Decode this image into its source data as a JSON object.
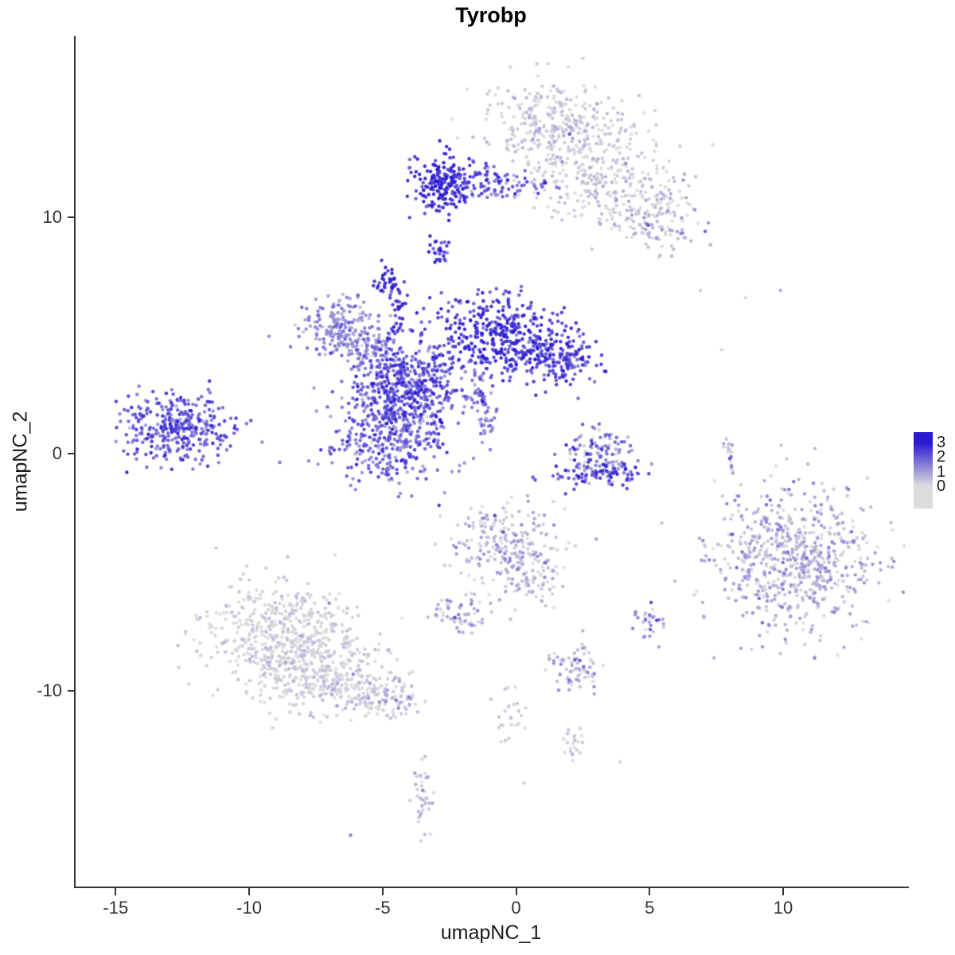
{
  "chart_data": {
    "type": "scatter",
    "title": "Tyrobp",
    "xlabel": "umapNC_1",
    "ylabel": "umapNC_2",
    "xlim": [
      -16.5,
      14.65
    ],
    "ylim": [
      -18.3,
      17.65
    ],
    "x_ticks": [
      -15,
      -10,
      -5,
      0,
      5,
      10
    ],
    "y_ticks": [
      10,
      0,
      -10
    ],
    "grid": false,
    "legend_position": "right",
    "legend": {
      "ticks": [
        3,
        2,
        1,
        0
      ],
      "high_color": "#2A1AD2",
      "low_color": "#DCDCDC"
    },
    "point_radius": 2.2,
    "clusters": [
      {
        "name": "top-grey-a",
        "cx": 1.2,
        "cy": 13.9,
        "sx": 1.15,
        "sy": 0.95,
        "n": 270,
        "expr": 0.18,
        "expr_sd": 0.3
      },
      {
        "name": "top-grey-b",
        "cx": 2.8,
        "cy": 12.2,
        "sx": 1.35,
        "sy": 1.15,
        "n": 260,
        "expr": 0.18,
        "expr_sd": 0.32
      },
      {
        "name": "top-grey-c",
        "cx": 4.7,
        "cy": 10.6,
        "sx": 1.0,
        "sy": 0.8,
        "n": 150,
        "expr": 0.25,
        "expr_sd": 0.4
      },
      {
        "name": "top-grey-tail",
        "cx": 5.7,
        "cy": 9.4,
        "sx": 0.7,
        "sy": 0.5,
        "n": 60,
        "expr": 0.5,
        "expr_sd": 0.6
      },
      {
        "name": "top-blue-core",
        "cx": -2.9,
        "cy": 11.4,
        "sx": 0.5,
        "sy": 0.6,
        "n": 160,
        "expr": 2.7,
        "expr_sd": 0.4
      },
      {
        "name": "top-blue-east",
        "cx": -1.7,
        "cy": 11.6,
        "sx": 0.8,
        "sy": 0.38,
        "n": 90,
        "expr": 2.3,
        "expr_sd": 0.5
      },
      {
        "name": "top-blue-bridge",
        "cx": -0.2,
        "cy": 11.3,
        "sx": 0.85,
        "sy": 0.3,
        "n": 45,
        "expr": 1.5,
        "expr_sd": 0.8
      },
      {
        "name": "blue-dot-mid",
        "cx": -2.9,
        "cy": 8.6,
        "sx": 0.2,
        "sy": 0.4,
        "n": 28,
        "expr": 2.4,
        "expr_sd": 0.4
      },
      {
        "name": "blue-blob-small",
        "cx": -4.8,
        "cy": 7.2,
        "sx": 0.28,
        "sy": 0.3,
        "n": 40,
        "expr": 2.8,
        "expr_sd": 0.3
      },
      {
        "name": "blue-streak",
        "cx": -4.4,
        "cy": 6.0,
        "sx": 0.16,
        "sy": 0.55,
        "n": 25,
        "expr": 2.5,
        "expr_sd": 0.4
      },
      {
        "name": "central-lavender-west",
        "cx": -6.6,
        "cy": 5.3,
        "sx": 0.75,
        "sy": 0.6,
        "n": 190,
        "expr": 1.25,
        "expr_sd": 0.45
      },
      {
        "name": "central-lavender-tail",
        "cx": -5.5,
        "cy": 4.4,
        "sx": 0.55,
        "sy": 0.4,
        "n": 90,
        "expr": 1.3,
        "expr_sd": 0.5
      },
      {
        "name": "central-core",
        "cx": -4.0,
        "cy": 3.0,
        "sx": 0.95,
        "sy": 0.95,
        "n": 480,
        "expr": 2.0,
        "expr_sd": 0.6
      },
      {
        "name": "central-east-wing",
        "cx": -0.7,
        "cy": 5.0,
        "sx": 1.15,
        "sy": 0.85,
        "n": 400,
        "expr": 2.5,
        "expr_sd": 0.45
      },
      {
        "name": "central-east-tip",
        "cx": 1.6,
        "cy": 4.1,
        "sx": 0.75,
        "sy": 0.55,
        "n": 160,
        "expr": 2.3,
        "expr_sd": 0.5
      },
      {
        "name": "central-south-lobe",
        "cx": -4.7,
        "cy": 0.7,
        "sx": 1.05,
        "sy": 1.05,
        "n": 380,
        "expr": 1.8,
        "expr_sd": 0.6
      },
      {
        "name": "central-streak-a",
        "cx": -1.6,
        "cy": 2.6,
        "sx": 0.25,
        "sy": 0.35,
        "n": 30,
        "expr": 1.4,
        "expr_sd": 0.4
      },
      {
        "name": "central-streak-b",
        "cx": -1.1,
        "cy": 1.5,
        "sx": 0.22,
        "sy": 0.55,
        "n": 35,
        "expr": 1.3,
        "expr_sd": 0.4
      },
      {
        "name": "west-cluster",
        "cx": -12.7,
        "cy": 1.1,
        "sx": 1.05,
        "sy": 0.75,
        "n": 340,
        "expr": 2.0,
        "expr_sd": 0.55
      },
      {
        "name": "east-small-mixed",
        "cx": 3.1,
        "cy": 0.1,
        "sx": 0.75,
        "sy": 0.6,
        "n": 110,
        "expr": 1.5,
        "expr_sd": 1.0
      },
      {
        "name": "east-small-arc",
        "cx": 3.2,
        "cy": -0.9,
        "sx": 0.95,
        "sy": 0.28,
        "n": 75,
        "expr": 2.3,
        "expr_sd": 0.5
      },
      {
        "name": "east-sliver",
        "cx": 8.0,
        "cy": 0.1,
        "sx": 0.12,
        "sy": 0.6,
        "n": 16,
        "expr": 0.8,
        "expr_sd": 0.7
      },
      {
        "name": "east-grey-big",
        "cx": 10.4,
        "cy": -4.4,
        "sx": 1.55,
        "sy": 1.45,
        "n": 680,
        "expr": 0.55,
        "expr_sd": 0.5
      },
      {
        "name": "mid-south",
        "cx": -0.4,
        "cy": -3.9,
        "sx": 0.95,
        "sy": 0.95,
        "n": 240,
        "expr": 0.45,
        "expr_sd": 0.5
      },
      {
        "name": "mid-south-tail",
        "cx": 0.7,
        "cy": -5.4,
        "sx": 0.45,
        "sy": 0.55,
        "n": 50,
        "expr": 0.35,
        "expr_sd": 0.4
      },
      {
        "name": "mid-small-west",
        "cx": -2.1,
        "cy": -6.8,
        "sx": 0.6,
        "sy": 0.4,
        "n": 60,
        "expr": 0.5,
        "expr_sd": 0.55
      },
      {
        "name": "southwest-grey-a",
        "cx": -8.9,
        "cy": -7.5,
        "sx": 1.35,
        "sy": 1.1,
        "n": 470,
        "expr": 0.12,
        "expr_sd": 0.22
      },
      {
        "name": "southwest-grey-b",
        "cx": -7.5,
        "cy": -9.2,
        "sx": 1.25,
        "sy": 0.85,
        "n": 310,
        "expr": 0.15,
        "expr_sd": 0.25
      },
      {
        "name": "southwest-tail",
        "cx": -5.6,
        "cy": -10.0,
        "sx": 0.85,
        "sy": 0.5,
        "n": 120,
        "expr": 0.2,
        "expr_sd": 0.35
      },
      {
        "name": "southwest-tip",
        "cx": -4.5,
        "cy": -10.5,
        "sx": 0.4,
        "sy": 0.3,
        "n": 40,
        "expr": 0.3,
        "expr_sd": 0.45
      },
      {
        "name": "south-small-east",
        "cx": 5.0,
        "cy": -7.0,
        "sx": 0.3,
        "sy": 0.42,
        "n": 28,
        "expr": 0.9,
        "expr_sd": 0.8
      },
      {
        "name": "south-small-mid",
        "cx": 2.3,
        "cy": -9.0,
        "sx": 0.5,
        "sy": 0.5,
        "n": 70,
        "expr": 0.5,
        "expr_sd": 0.6
      },
      {
        "name": "south-string",
        "cx": -0.3,
        "cy": -11.2,
        "sx": 0.3,
        "sy": 0.85,
        "n": 25,
        "expr": 0.15,
        "expr_sd": 0.25
      },
      {
        "name": "south-dot-blob",
        "cx": 2.1,
        "cy": -12.2,
        "sx": 0.3,
        "sy": 0.3,
        "n": 20,
        "expr": 0.2,
        "expr_sd": 0.3
      },
      {
        "name": "south-vertical-small",
        "cx": -3.5,
        "cy": -14.5,
        "sx": 0.22,
        "sy": 0.75,
        "n": 40,
        "expr": 0.3,
        "expr_sd": 0.4
      }
    ],
    "singles": [
      {
        "x": 6.9,
        "y": 6.9,
        "e": 0.3
      },
      {
        "x": 8.6,
        "y": 6.6,
        "e": 0.1
      },
      {
        "x": 9.9,
        "y": 6.9,
        "e": 0.9
      },
      {
        "x": 7.7,
        "y": 4.4,
        "e": 0.1
      },
      {
        "x": 2.0,
        "y": 13.5,
        "e": 2.2
      },
      {
        "x": 0.7,
        "y": 11.3,
        "e": 1.8
      },
      {
        "x": 4.9,
        "y": 9.7,
        "e": 2.0
      },
      {
        "x": -0.8,
        "y": -2.6,
        "e": 2.4
      },
      {
        "x": -0.5,
        "y": -3.3,
        "e": 2.1
      },
      {
        "x": 1.1,
        "y": -4.6,
        "e": 1.8
      },
      {
        "x": -2.3,
        "y": -6.9,
        "e": 2.2
      },
      {
        "x": 8.1,
        "y": -3.4,
        "e": 2.2
      },
      {
        "x": 9.1,
        "y": -6.1,
        "e": 1.9
      },
      {
        "x": -7.0,
        "y": -6.3,
        "e": 1.6
      },
      {
        "x": -6.1,
        "y": -9.3,
        "e": 1.5
      },
      {
        "x": -4.5,
        "y": -10.4,
        "e": 1.5
      },
      {
        "x": 5.0,
        "y": -6.8,
        "e": 1.9
      },
      {
        "x": 2.2,
        "y": -8.7,
        "e": 2.0
      },
      {
        "x": -3.5,
        "y": -14.2,
        "e": 1.4
      },
      {
        "x": -6.2,
        "y": -16.1,
        "e": 1.6
      },
      {
        "x": 0.3,
        "y": -13.9,
        "e": 0.2
      },
      {
        "x": 8.0,
        "y": -0.2,
        "e": 2.1
      },
      {
        "x": 12.9,
        "y": -2.3,
        "e": 0.4
      },
      {
        "x": 3.9,
        "y": -13.0,
        "e": 0.2
      }
    ]
  }
}
